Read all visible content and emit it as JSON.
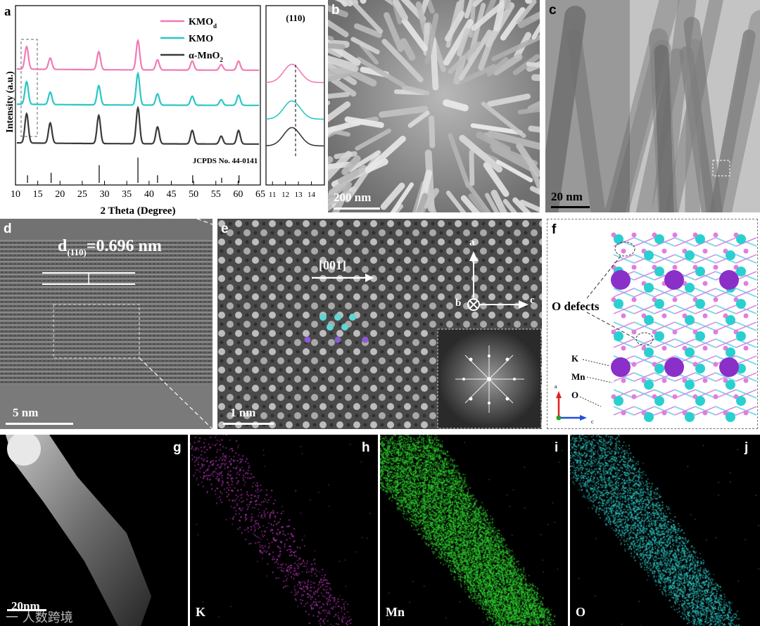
{
  "panels": {
    "a": {
      "label": "a",
      "ylabel": "Intensity (a.u.)",
      "xlabel": "2 Theta (Degree)",
      "xticks": [
        "10",
        "15",
        "20",
        "25",
        "30",
        "35",
        "40",
        "45",
        "50",
        "55",
        "60",
        "65"
      ],
      "legend": [
        {
          "name_main": "KMO",
          "name_sub": "d",
          "color": "#f27ab6"
        },
        {
          "name_main": "KMO",
          "name_sub": "",
          "color": "#2bc6c6"
        },
        {
          "name_main": "α-MnO",
          "name_sub": "2",
          "color": "#3a3a3a"
        }
      ],
      "reference": "JCPDS No. 44-0141",
      "inset_title": "(110)",
      "inset_xticks": [
        "11",
        "12",
        "13",
        "14"
      ]
    },
    "b": {
      "label": "b",
      "scale": "200 nm"
    },
    "c": {
      "label": "c",
      "scale": "20 nm"
    },
    "d": {
      "label": "d",
      "d_main": "d",
      "d_sub": "(110)",
      "d_value": "=0.696 nm",
      "scale": "5 nm"
    },
    "e": {
      "label": "e",
      "direction": "[001]",
      "axis_a": "a",
      "axis_b": "b",
      "axis_c": "c",
      "scale": "1 nm"
    },
    "f": {
      "label": "f",
      "o_defects": "O defects",
      "k_label": "K",
      "mn_label": "Mn",
      "o_label": "O",
      "axis_a": "a",
      "axis_c": "c"
    },
    "g": {
      "label": "g",
      "scale": "20nm",
      "watermark": "一 人数跨境"
    },
    "h": {
      "label": "h",
      "element": "K"
    },
    "i": {
      "label": "i",
      "element": "Mn"
    },
    "j": {
      "label": "j",
      "element": "O"
    }
  },
  "colors": {
    "kmod": "#f27ab6",
    "kmo": "#2bc6c6",
    "mno2": "#3a3a3a",
    "k_atom": "#8b2fc9",
    "o_atom": "#2ad0cf",
    "mn_atom": "#e27de0",
    "map_k": "#e040e0",
    "map_mn": "#2fd42f",
    "map_o": "#2fcfcf"
  },
  "chart_data": {
    "type": "line",
    "xlabel": "2 Theta (Degree)",
    "ylabel": "Intensity (a.u.)",
    "xlim": [
      10,
      65
    ],
    "series": [
      {
        "name": "KMOd",
        "peaks": [
          [
            12.5,
            1.0
          ],
          [
            17.8,
            0.5
          ],
          [
            28.7,
            0.8
          ],
          [
            37.5,
            1.3
          ],
          [
            41.9,
            0.45
          ],
          [
            49.7,
            0.4
          ],
          [
            56.2,
            0.25
          ],
          [
            60.1,
            0.4
          ]
        ]
      },
      {
        "name": "KMO",
        "peaks": [
          [
            12.5,
            1.0
          ],
          [
            17.8,
            0.55
          ],
          [
            28.7,
            0.85
          ],
          [
            37.5,
            1.4
          ],
          [
            41.9,
            0.5
          ],
          [
            49.7,
            0.4
          ],
          [
            56.2,
            0.25
          ],
          [
            60.1,
            0.45
          ]
        ]
      },
      {
        "name": "α-MnO2",
        "peaks": [
          [
            12.5,
            1.3
          ],
          [
            17.8,
            0.9
          ],
          [
            28.7,
            1.25
          ],
          [
            37.5,
            1.6
          ],
          [
            41.9,
            0.75
          ],
          [
            49.7,
            0.6
          ],
          [
            56.2,
            0.35
          ],
          [
            60.1,
            0.6
          ]
        ]
      }
    ],
    "reference_lines": {
      "name": "JCPDS No. 44-0141",
      "x": [
        12.7,
        18.0,
        28.8,
        37.5,
        41.9,
        49.8,
        56.3,
        60.2
      ],
      "h": [
        0.3,
        0.4,
        0.7,
        1.0,
        0.3,
        0.3,
        0.2,
        0.3
      ]
    },
    "inset": {
      "title": "(110)",
      "xlim": [
        10.5,
        15
      ],
      "peak_x": 12.5
    }
  }
}
